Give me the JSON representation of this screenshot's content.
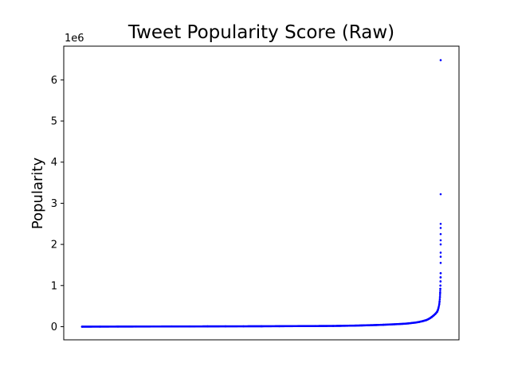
{
  "chart_data": {
    "type": "scatter",
    "title": "Tweet Popularity Score (Raw)",
    "xlabel": "",
    "ylabel": "Popularity",
    "y_offset_label": "1e6",
    "y_scale_factor": 1000000,
    "ylim": [
      -320000,
      6820000
    ],
    "xlim": [
      0,
      1
    ],
    "x_ticks_shown": false,
    "y_ticks": [
      0,
      1000000,
      2000000,
      3000000,
      4000000,
      5000000,
      6000000
    ],
    "y_tick_labels": [
      "0",
      "1",
      "2",
      "3",
      "4",
      "5",
      "6"
    ],
    "grid": false,
    "marker_color": "#0000ff",
    "series": [
      {
        "x": [
          0.0,
          0.05,
          0.1,
          0.15,
          0.2,
          0.25,
          0.3,
          0.35,
          0.4,
          0.45,
          0.5,
          0.55,
          0.6,
          0.65,
          0.7,
          0.72,
          0.74,
          0.76,
          0.78,
          0.8,
          0.82,
          0.84,
          0.86,
          0.88,
          0.9,
          0.91,
          0.92,
          0.93,
          0.94,
          0.95,
          0.96,
          0.965,
          0.97,
          0.975,
          0.98,
          0.985,
          0.99,
          0.992,
          0.994,
          0.996,
          0.997,
          0.998,
          0.9985,
          0.999,
          0.9993,
          0.9996,
          0.9998,
          1.0,
          1.0,
          1.0,
          1.0,
          1.0,
          1.0,
          1.0,
          1.0,
          1.0,
          1.0,
          1.0
        ],
        "y": [
          0,
          1000,
          2000,
          3000,
          4000,
          5000,
          6000,
          7000,
          8000,
          9000,
          10000,
          12000,
          14000,
          16000,
          18000,
          20000,
          23000,
          26000,
          30000,
          35000,
          40000,
          46000,
          54000,
          62000,
          72000,
          80000,
          90000,
          100000,
          115000,
          135000,
          160000,
          180000,
          205000,
          235000,
          270000,
          310000,
          360000,
          400000,
          460000,
          540000,
          620000,
          720000,
          820000,
          920000,
          1000000,
          1100000,
          1200000,
          1300000,
          1550000,
          1700000,
          1800000,
          2000000,
          2100000,
          2250000,
          2400000,
          2500000,
          3220000,
          6480000
        ]
      }
    ]
  }
}
